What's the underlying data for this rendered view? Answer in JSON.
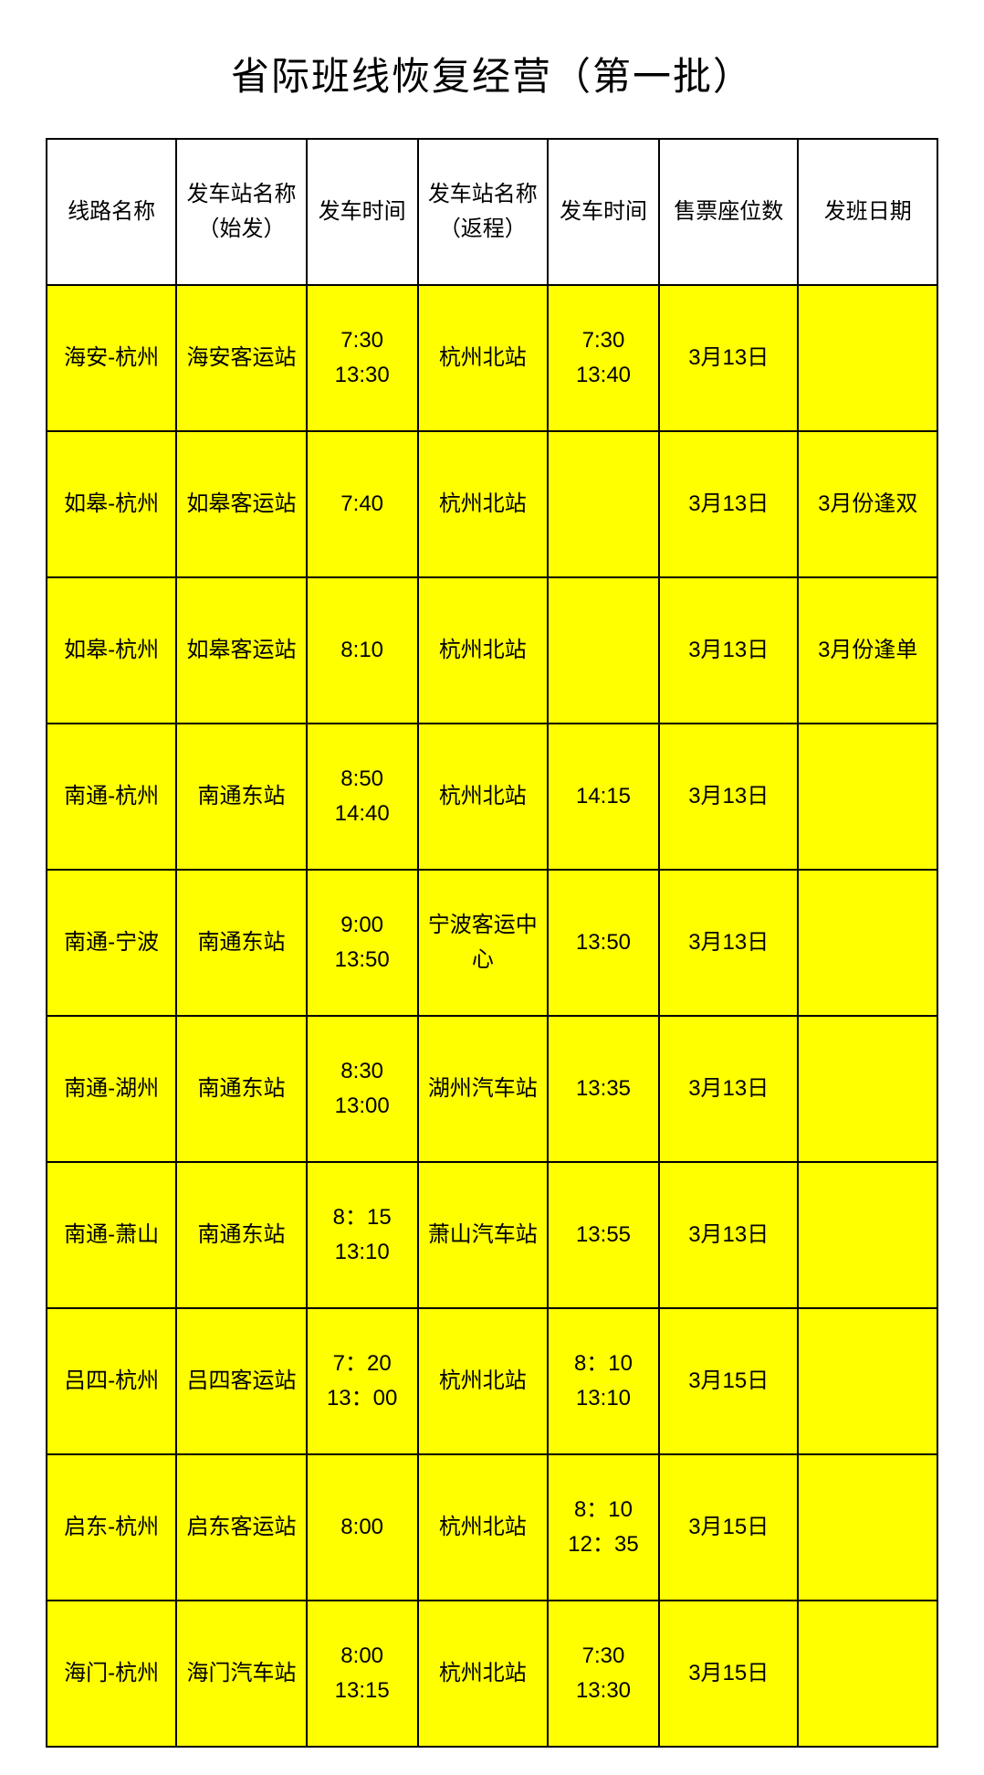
{
  "title": "省际班线恢复经营（第一批）",
  "table": {
    "columns": [
      {
        "label": "线路名称",
        "width": "14%"
      },
      {
        "label": "发车站名称\n（始发）",
        "width": "14%"
      },
      {
        "label": "发车时间",
        "width": "12%"
      },
      {
        "label": "发车站名称\n（返程）",
        "width": "14%"
      },
      {
        "label": "发车时间",
        "width": "12%"
      },
      {
        "label": "售票座位数",
        "width": "15%"
      },
      {
        "label": "发班日期",
        "width": "15%"
      }
    ],
    "rows": [
      [
        "海安-杭州",
        "海安客运站",
        "7:30\n13:30",
        "杭州北站",
        "7:30\n13:40",
        "3月13日",
        ""
      ],
      [
        "如皋-杭州",
        "如皋客运站",
        "7:40",
        "杭州北站",
        "",
        "3月13日",
        "3月份逢双"
      ],
      [
        "如皋-杭州",
        "如皋客运站",
        "8:10",
        "杭州北站",
        "",
        "3月13日",
        "3月份逢单"
      ],
      [
        "南通-杭州",
        "南通东站",
        "8:50\n14:40",
        "杭州北站",
        "14:15",
        "3月13日",
        ""
      ],
      [
        "南通-宁波",
        "南通东站",
        "9:00\n13:50",
        "宁波客运中心",
        "13:50",
        "3月13日",
        ""
      ],
      [
        "南通-湖州",
        "南通东站",
        "8:30\n13:00",
        "湖州汽车站",
        "13:35",
        "3月13日",
        ""
      ],
      [
        "南通-萧山",
        "南通东站",
        "8：15\n13:10",
        "萧山汽车站",
        "13:55",
        "3月13日",
        ""
      ],
      [
        "吕四-杭州",
        "吕四客运站",
        "7：20\n13：00",
        "杭州北站",
        "8：10\n13:10",
        "3月15日",
        ""
      ],
      [
        "启东-杭州",
        "启东客运站",
        "8:00",
        "杭州北站",
        "8：10\n12：35",
        "3月15日",
        ""
      ],
      [
        "海门-杭州",
        "海门汽车站",
        "8:00\n13:15",
        "杭州北站",
        "7:30\n13:30",
        "3月15日",
        ""
      ]
    ],
    "header_bg": "#ffffff",
    "row_bg": "#ffff00",
    "border_color": "#000000",
    "font_size_cell": 24,
    "font_size_title": 42
  }
}
